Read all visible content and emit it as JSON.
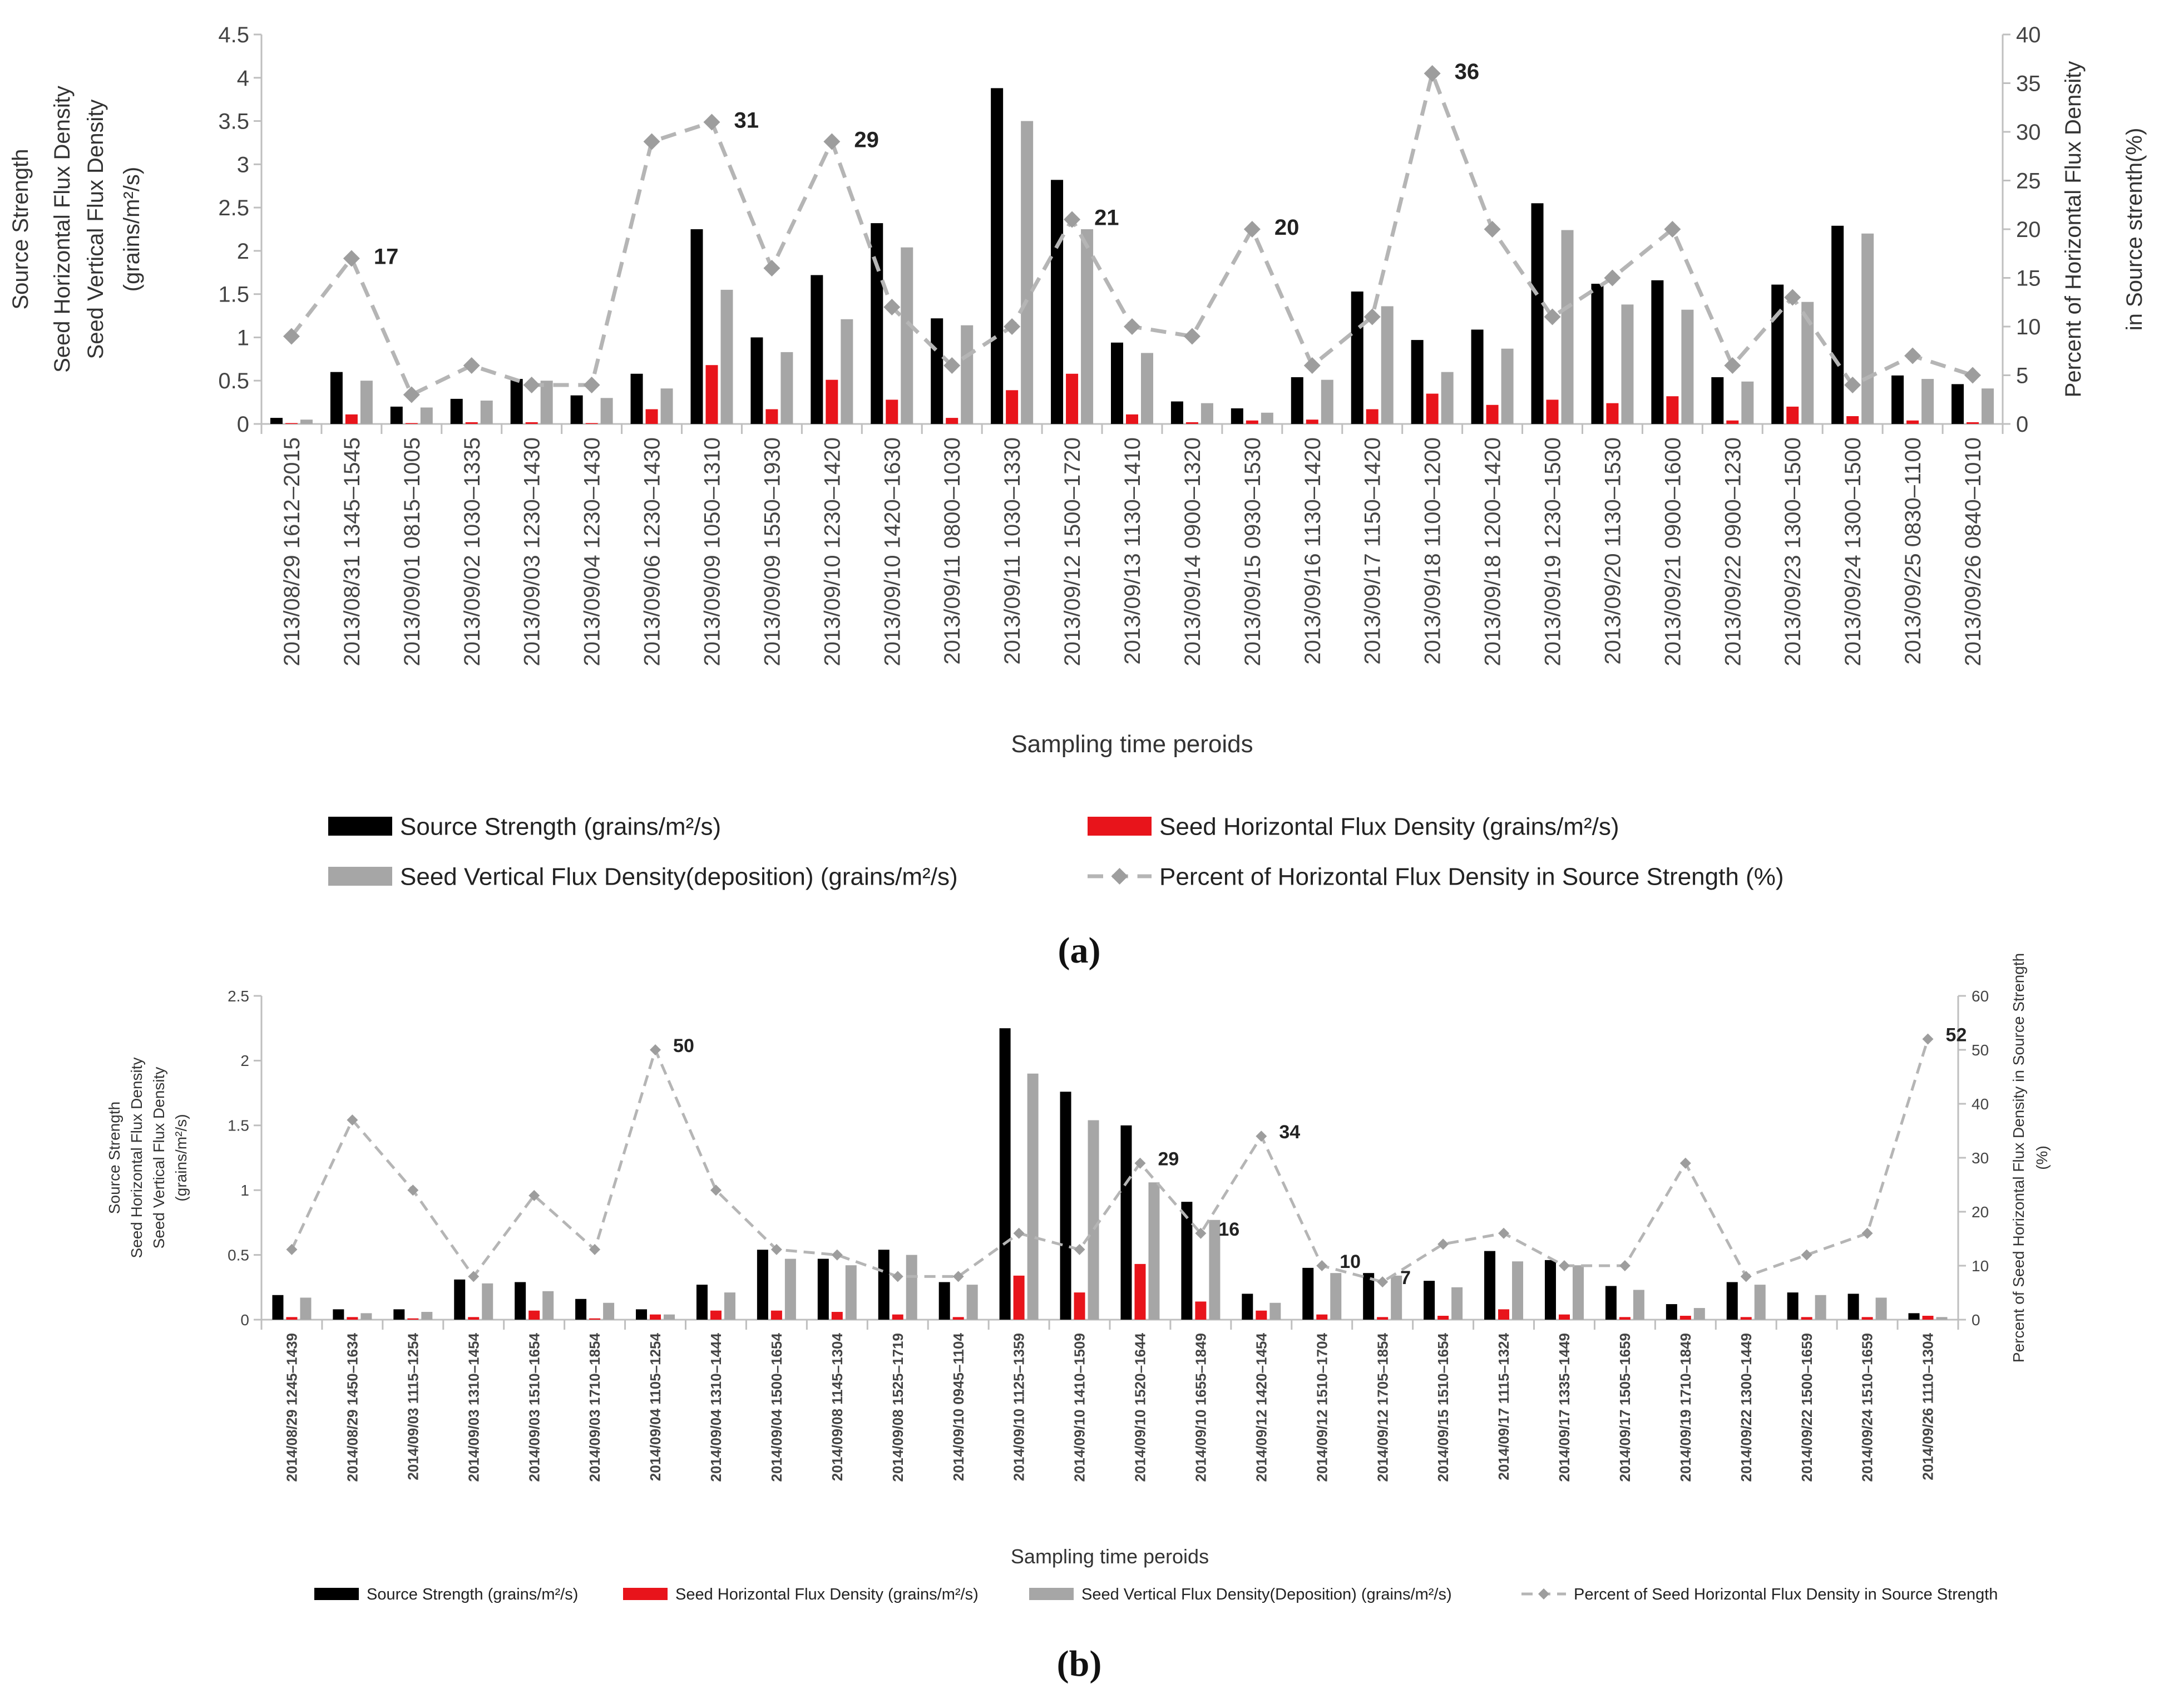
{
  "chart_data": [
    {
      "id": "a",
      "panel_label": "(a)",
      "type": "bar",
      "xlabel": "Sampling time peroids",
      "ylabel_lines": [
        "Source Strength",
        "Seed Horizontal Flux Density",
        "Seed Vertical Flux Density",
        "(grains/m²/s)"
      ],
      "y2label_lines": [
        "Percent of Horizontal Flux Density",
        "in Source strenth(%)"
      ],
      "ylim": [
        0,
        4.5
      ],
      "y_ticks": [
        "0",
        "0.5",
        "1",
        "1.5",
        "2",
        "2.5",
        "3",
        "3.5",
        "4",
        "4.5"
      ],
      "y2lim": [
        0,
        40
      ],
      "y2_ticks": [
        "0",
        "5",
        "10",
        "15",
        "20",
        "25",
        "30",
        "35",
        "40"
      ],
      "categories": [
        "2013/08/29 1612–2015",
        "2013/08/31 1345–1545",
        "2013/09/01 0815–1005",
        "2013/09/02 1030–1335",
        "2013/09/03 1230–1430",
        "2013/09/04 1230–1430",
        "2013/09/06 1230–1430",
        "2013/09/09 1050–1310",
        "2013/09/09 1550–1930",
        "2013/09/10 1230–1420",
        "2013/09/10 1420–1630",
        "2013/09/11 0800–1030",
        "2013/09/11 1030–1330",
        "2013/09/12 1500–1720",
        "2013/09/13 1130–1410",
        "2013/09/14 0900–1320",
        "2013/09/15 0930–1530",
        "2013/09/16 1130–1420",
        "2013/09/17 1150–1420",
        "2013/09/18 1100–1200",
        "2013/09/18 1200–1420",
        "2013/09/19 1230–1500",
        "2013/09/20 1130–1530",
        "2013/09/21 0900–1600",
        "2013/09/22 0900–1230",
        "2013/09/23 1300–1500",
        "2013/09/24 1300–1500",
        "2013/09/25 0830–1100",
        "2013/09/26 0840–1010"
      ],
      "series": [
        {
          "name": "Source Strength (grains/m²/s)",
          "kind": "bar",
          "color": "#000000",
          "values": [
            0.07,
            0.6,
            0.2,
            0.29,
            0.52,
            0.33,
            0.58,
            2.25,
            1.0,
            1.72,
            2.32,
            1.22,
            3.88,
            2.82,
            0.94,
            0.26,
            0.18,
            0.54,
            1.53,
            0.97,
            1.09,
            2.55,
            1.62,
            1.66,
            0.54,
            1.61,
            2.29,
            0.56,
            0.46
          ]
        },
        {
          "name": "Seed Horizontal Flux Density (grains/m²/s)",
          "kind": "bar",
          "color": "#e8141b",
          "values": [
            0.01,
            0.11,
            0.01,
            0.02,
            0.02,
            0.01,
            0.17,
            0.68,
            0.17,
            0.51,
            0.28,
            0.07,
            0.39,
            0.58,
            0.11,
            0.02,
            0.04,
            0.05,
            0.17,
            0.35,
            0.22,
            0.28,
            0.24,
            0.32,
            0.04,
            0.2,
            0.09,
            0.04,
            0.02
          ]
        },
        {
          "name": "Seed Vertical Flux Density(deposition) (grains/m²/s)",
          "kind": "bar",
          "color": "#a6a6a6",
          "values": [
            0.05,
            0.5,
            0.19,
            0.27,
            0.5,
            0.3,
            0.41,
            1.55,
            0.83,
            1.21,
            2.04,
            1.14,
            3.5,
            2.25,
            0.82,
            0.24,
            0.13,
            0.51,
            1.36,
            0.6,
            0.87,
            2.24,
            1.38,
            1.32,
            0.49,
            1.41,
            2.2,
            0.52,
            0.41
          ]
        },
        {
          "name": "Percent of Horizontal Flux Density in Source Strength (%)",
          "kind": "line",
          "axis": "right",
          "color": "#b5b5b5",
          "values": [
            9,
            17,
            3,
            6,
            4,
            4,
            29,
            31,
            16,
            29,
            12,
            6,
            10,
            21,
            10,
            9,
            20,
            6,
            11,
            36,
            20,
            11,
            15,
            20,
            6,
            13,
            4,
            7,
            5
          ]
        }
      ],
      "annotations": [
        {
          "index": 1,
          "text": "17"
        },
        {
          "index": 7,
          "text": "31"
        },
        {
          "index": 9,
          "text": "29"
        },
        {
          "index": 13,
          "text": "21"
        },
        {
          "index": 16,
          "text": "20"
        },
        {
          "index": 19,
          "text": "36"
        }
      ]
    },
    {
      "id": "b",
      "panel_label": "(b)",
      "type": "bar",
      "xlabel": "Sampling time peroids",
      "ylabel_lines": [
        "Source Strength",
        "Seed Horizontal Flux Density",
        "Seed Vertical Flux Density",
        "(grains/m²/s)"
      ],
      "y2label_lines": [
        "Percent of Seed Horizontal Flux Density in Source Strength",
        "(%)"
      ],
      "ylim": [
        0,
        2.5
      ],
      "y_ticks": [
        "0",
        "0.5",
        "1",
        "1.5",
        "2",
        "2.5"
      ],
      "y2lim": [
        0,
        60
      ],
      "y2_ticks": [
        "0",
        "10",
        "20",
        "30",
        "40",
        "50",
        "60"
      ],
      "categories": [
        "2014/08/29 1245–1439",
        "2014/08/29 1450–1634",
        "2014/09/03 1115–1254",
        "2014/09/03 1310–1454",
        "2014/09/03 1510–1654",
        "2014/09/03 1710–1854",
        "2014/09/04 1105–1254",
        "2014/09/04 1310–1444",
        "2014/09/04 1500–1654",
        "2014/09/08 1145–1304",
        "2014/09/08 1525–1719",
        "2014/09/10 0945–1104",
        "2014/09/10 1125–1359",
        "2014/09/10 1410–1509",
        "2014/09/10 1520–1644",
        "2014/09/10 1655–1849",
        "2014/09/12 1420–1454",
        "2014/09/12 1510–1704",
        "2014/09/12 1705–1854",
        "2014/09/15 1510–1654",
        "2014/09/17 1115–1324",
        "2014/09/17 1335–1449",
        "2014/09/17 1505–1659",
        "2014/09/19 1710–1849",
        "2014/09/22 1300–1449",
        "2014/09/22 1500–1659",
        "2014/09/24 1510–1659",
        "2014/09/26 1110–1304"
      ],
      "series": [
        {
          "name": "Source Strength (grains/m²/s)",
          "kind": "bar",
          "color": "#000000",
          "values": [
            0.19,
            0.08,
            0.08,
            0.31,
            0.29,
            0.16,
            0.08,
            0.27,
            0.54,
            0.47,
            0.54,
            0.29,
            2.25,
            1.76,
            1.5,
            0.91,
            0.2,
            0.4,
            0.36,
            0.3,
            0.53,
            0.46,
            0.26,
            0.12,
            0.29,
            0.21,
            0.2,
            0.05
          ]
        },
        {
          "name": "Seed Horizontal Flux Density (grains/m²/s)",
          "kind": "bar",
          "color": "#e8141b",
          "values": [
            0.02,
            0.02,
            0.01,
            0.02,
            0.07,
            0.01,
            0.04,
            0.07,
            0.07,
            0.06,
            0.04,
            0.02,
            0.34,
            0.21,
            0.43,
            0.14,
            0.07,
            0.04,
            0.02,
            0.03,
            0.08,
            0.04,
            0.02,
            0.03,
            0.02,
            0.02,
            0.02,
            0.03
          ]
        },
        {
          "name": "Seed Vertical  Flux Density(Deposition) (grains/m²/s)",
          "kind": "bar",
          "color": "#a6a6a6",
          "values": [
            0.17,
            0.05,
            0.06,
            0.28,
            0.22,
            0.13,
            0.04,
            0.21,
            0.47,
            0.42,
            0.5,
            0.27,
            1.9,
            1.54,
            1.06,
            0.77,
            0.13,
            0.36,
            0.34,
            0.25,
            0.45,
            0.42,
            0.23,
            0.09,
            0.27,
            0.19,
            0.17,
            0.02
          ]
        },
        {
          "name": "Percent of Seed Horizontal Flux Density in Source Strength",
          "kind": "line",
          "axis": "right",
          "color": "#b5b5b5",
          "values": [
            13,
            37,
            24,
            8,
            23,
            13,
            50,
            24,
            13,
            12,
            8,
            8,
            16,
            13,
            29,
            16,
            34,
            10,
            7,
            14,
            16,
            10,
            10,
            29,
            8,
            12,
            16,
            52
          ]
        }
      ],
      "annotations": [
        {
          "index": 6,
          "text": "50"
        },
        {
          "index": 14,
          "text": "29"
        },
        {
          "index": 15,
          "text": "16"
        },
        {
          "index": 16,
          "text": "34"
        },
        {
          "index": 17,
          "text": "10"
        },
        {
          "index": 18,
          "text": "7"
        },
        {
          "index": 27,
          "text": "52"
        }
      ]
    }
  ]
}
